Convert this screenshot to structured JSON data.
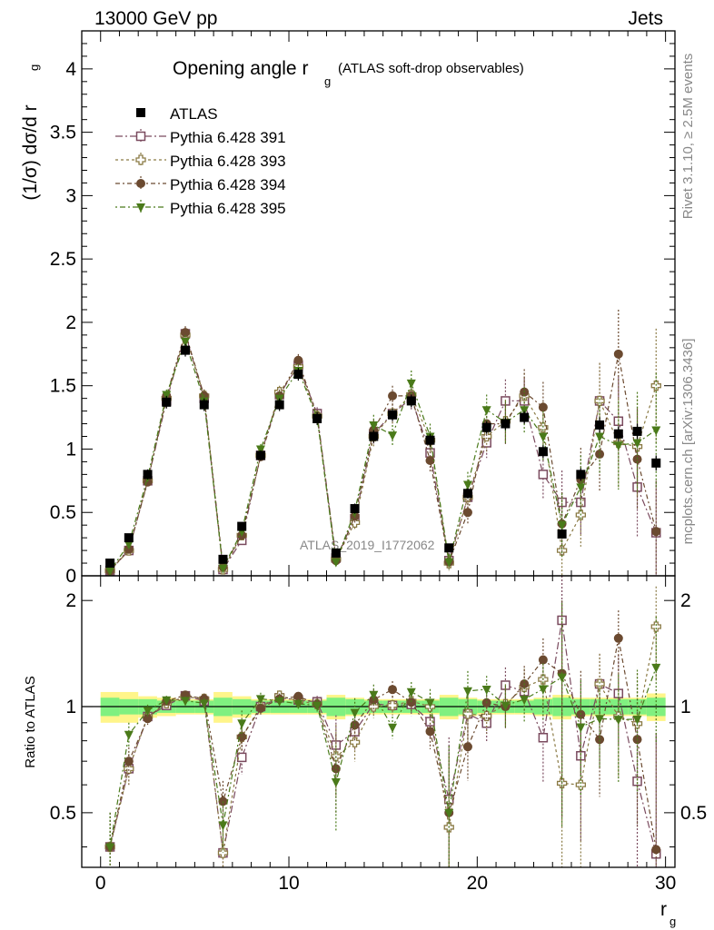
{
  "header": {
    "left": "13000 GeV pp",
    "right": "Jets"
  },
  "side_labels": {
    "rivet": "Rivet 3.1.10, ≥ 2.5M events",
    "mcplots": "mcplots.cern.ch [arXiv:1306.3436]"
  },
  "analysis_tag": "ATLAS_2019_I1772062",
  "chart_data": {
    "type": "scatter",
    "title_main": "Opening angle r",
    "title_sub": "g",
    "title_note": "(ATLAS soft-drop observables)",
    "ylabel": "(1/σ) dσ/d r",
    "ylabel_sub": "g",
    "ratio_ylabel": "Ratio to ATLAS",
    "xlabel": "r",
    "xlabel_sub": "g",
    "xlim": [
      -1,
      30.5
    ],
    "ylim": [
      0,
      4.3
    ],
    "ratio_ylim": [
      0.35,
      2.35
    ],
    "ratio_log": true,
    "x_ticks": [
      "0",
      "10",
      "20",
      "30"
    ],
    "y_ticks": [
      "0",
      "0.5",
      "1",
      "1.5",
      "2",
      "2.5",
      "3",
      "3.5",
      "4"
    ],
    "ratio_ticks": [
      "0.5",
      "1",
      "2"
    ],
    "legend_position": "top-left",
    "x": [
      0.5,
      1.5,
      2.5,
      3.5,
      4.5,
      5.5,
      6.5,
      7.5,
      8.5,
      9.5,
      10.5,
      11.5,
      12.5,
      13.5,
      14.5,
      15.5,
      16.5,
      17.5,
      18.5,
      19.5,
      20.5,
      21.5,
      22.5,
      23.5,
      24.5,
      25.5,
      26.5,
      27.5,
      28.5,
      29.5
    ],
    "series": [
      {
        "name": "ATLAS",
        "color": "#000000",
        "marker": "filled-square",
        "line": false,
        "values": [
          0.1,
          0.3,
          0.8,
          1.37,
          1.78,
          1.35,
          0.13,
          0.39,
          0.95,
          1.35,
          1.59,
          1.24,
          0.18,
          0.53,
          1.1,
          1.27,
          1.38,
          1.07,
          0.22,
          0.65,
          1.17,
          1.2,
          1.25,
          0.98,
          0.33,
          0.8,
          1.19,
          1.12,
          1.14,
          0.89
        ],
        "band_inner": [
          0.06,
          0.05,
          0.05,
          0.04,
          0.04,
          0.04,
          0.06,
          0.05,
          0.04,
          0.04,
          0.04,
          0.04,
          0.06,
          0.05,
          0.04,
          0.04,
          0.04,
          0.04,
          0.06,
          0.05,
          0.04,
          0.04,
          0.04,
          0.05,
          0.06,
          0.05,
          0.05,
          0.05,
          0.05,
          0.06
        ],
        "band_outer": [
          0.1,
          0.1,
          0.07,
          0.06,
          0.05,
          0.05,
          0.1,
          0.07,
          0.05,
          0.05,
          0.05,
          0.05,
          0.08,
          0.06,
          0.05,
          0.05,
          0.05,
          0.05,
          0.08,
          0.06,
          0.05,
          0.05,
          0.05,
          0.06,
          0.08,
          0.06,
          0.06,
          0.06,
          0.06,
          0.09
        ],
        "errors": [
          0.02,
          0.03,
          0.04,
          0.05,
          0.05,
          0.05,
          0.02,
          0.03,
          0.04,
          0.05,
          0.05,
          0.05,
          0.02,
          0.04,
          0.05,
          0.05,
          0.05,
          0.05,
          0.02,
          0.04,
          0.05,
          0.05,
          0.05,
          0.05,
          0.03,
          0.05,
          0.06,
          0.06,
          0.06,
          0.06
        ]
      },
      {
        "name": "Pythia 6.428 391",
        "color": "#7a4a5e",
        "marker": "open-square",
        "line": true,
        "dash": "8,3,2,3",
        "values": [
          0.04,
          0.2,
          0.75,
          1.38,
          1.91,
          1.4,
          0.05,
          0.28,
          0.95,
          1.43,
          1.66,
          1.28,
          0.14,
          0.45,
          1.12,
          1.28,
          1.4,
          0.97,
          0.12,
          0.62,
          1.05,
          1.38,
          1.38,
          0.8,
          0.58,
          0.58,
          1.38,
          1.22,
          0.7,
          0.34
        ],
        "errors": [
          0.01,
          0.02,
          0.03,
          0.04,
          0.05,
          0.05,
          0.01,
          0.03,
          0.04,
          0.05,
          0.05,
          0.05,
          0.03,
          0.05,
          0.08,
          0.08,
          0.1,
          0.1,
          0.06,
          0.1,
          0.12,
          0.17,
          0.18,
          0.2,
          0.25,
          0.25,
          0.3,
          0.35,
          0.4,
          0.4
        ]
      },
      {
        "name": "Pythia 6.428 393",
        "color": "#8a7a44",
        "marker": "open-cross",
        "line": true,
        "dash": "3,3",
        "values": [
          0.04,
          0.2,
          0.75,
          1.4,
          1.9,
          1.42,
          0.05,
          0.32,
          0.95,
          1.45,
          1.65,
          1.26,
          0.13,
          0.42,
          1.1,
          1.28,
          1.43,
          1.07,
          0.1,
          0.62,
          1.1,
          1.22,
          1.42,
          1.17,
          0.2,
          0.48,
          1.38,
          1.05,
          1.02,
          1.5
        ],
        "errors": [
          0.01,
          0.02,
          0.03,
          0.04,
          0.05,
          0.05,
          0.01,
          0.03,
          0.04,
          0.05,
          0.05,
          0.05,
          0.03,
          0.05,
          0.08,
          0.08,
          0.1,
          0.1,
          0.06,
          0.1,
          0.12,
          0.17,
          0.18,
          0.2,
          0.25,
          0.25,
          0.3,
          0.35,
          0.4,
          0.45
        ]
      },
      {
        "name": "Pythia 6.428 394",
        "color": "#6b4a30",
        "marker": "filled-circle",
        "line": true,
        "dash": "5,3,2,3",
        "values": [
          0.04,
          0.21,
          0.74,
          1.42,
          1.92,
          1.42,
          0.07,
          0.32,
          0.94,
          1.42,
          1.7,
          1.26,
          0.12,
          0.47,
          1.15,
          1.42,
          1.42,
          0.91,
          0.11,
          0.5,
          1.2,
          1.2,
          1.45,
          1.33,
          0.41,
          0.76,
          0.96,
          1.75,
          0.92,
          0.35
        ],
        "errors": [
          0.01,
          0.02,
          0.03,
          0.04,
          0.05,
          0.05,
          0.01,
          0.03,
          0.04,
          0.05,
          0.05,
          0.05,
          0.03,
          0.05,
          0.08,
          0.08,
          0.1,
          0.1,
          0.06,
          0.1,
          0.12,
          0.17,
          0.18,
          0.2,
          0.25,
          0.25,
          0.3,
          0.35,
          0.4,
          0.4
        ]
      },
      {
        "name": "Pythia 6.428 395",
        "color": "#4a7a1a",
        "marker": "filled-triangle-down",
        "line": true,
        "dash": "2,3,6,3",
        "values": [
          0.04,
          0.25,
          0.78,
          1.43,
          1.85,
          1.38,
          0.06,
          0.35,
          1.0,
          1.4,
          1.62,
          1.25,
          0.11,
          0.51,
          1.19,
          1.11,
          1.52,
          1.1,
          0.11,
          0.72,
          1.31,
          1.21,
          1.31,
          1.1,
          0.4,
          0.7,
          1.1,
          1.03,
          1.05,
          1.15
        ],
        "errors": [
          0.01,
          0.02,
          0.03,
          0.04,
          0.05,
          0.05,
          0.01,
          0.03,
          0.04,
          0.05,
          0.05,
          0.05,
          0.03,
          0.05,
          0.08,
          0.08,
          0.1,
          0.1,
          0.06,
          0.1,
          0.12,
          0.17,
          0.18,
          0.2,
          0.25,
          0.25,
          0.3,
          0.35,
          0.4,
          0.45
        ]
      }
    ]
  },
  "colors": {
    "band_inner": "#80f080",
    "band_outer": "#fff58a",
    "frame": "#000000",
    "side_text": "#888888"
  }
}
